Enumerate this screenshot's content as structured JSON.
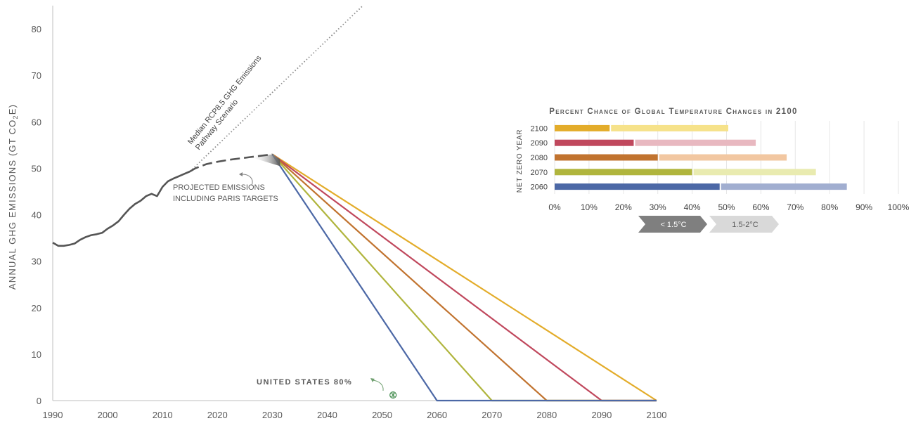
{
  "chart_data": [
    {
      "type": "line",
      "title": "",
      "xlabel": "",
      "ylabel_main": "ANNUAL GHG EMISSIONS (GT CO",
      "ylabel_sub": "2",
      "ylabel_end": "E)",
      "xlim": [
        1990,
        2100
      ],
      "ylim": [
        0,
        85
      ],
      "x_ticks": [
        "1990",
        "2000",
        "2010",
        "2020",
        "2030",
        "2040",
        "2050",
        "2060",
        "2070",
        "2080",
        "2090",
        "2100"
      ],
      "y_ticks": [
        "0",
        "10",
        "20",
        "30",
        "40",
        "50",
        "60",
        "70",
        "80"
      ],
      "historical": {
        "x": [
          1990,
          1991,
          1992,
          1993,
          1994,
          1995,
          1996,
          1997,
          1998,
          1999,
          2000,
          2001,
          2002,
          2003,
          2004,
          2005,
          2006,
          2007,
          2008,
          2009,
          2010,
          2011,
          2012,
          2013,
          2014,
          2015
        ],
        "y": [
          34,
          33.3,
          33.3,
          33.5,
          33.8,
          34.6,
          35.2,
          35.6,
          35.8,
          36.1,
          37,
          37.7,
          38.6,
          40,
          41.3,
          42.3,
          43,
          44,
          44.5,
          44,
          46,
          47.2,
          47.8,
          48.3,
          48.8,
          49.3
        ]
      },
      "projected": {
        "x": [
          2015,
          2016,
          2018,
          2020,
          2022,
          2024,
          2026,
          2028,
          2030
        ],
        "y": [
          49.3,
          50,
          50.9,
          51.4,
          51.8,
          52.1,
          52.4,
          52.7,
          53
        ]
      },
      "rcp85": {
        "x": [
          2015,
          2046.5
        ],
        "y": [
          49.3,
          85
        ]
      },
      "pathways": [
        {
          "name": "2060",
          "color": "#4c68a6",
          "x": [
            2030,
            2060,
            2100
          ],
          "y": [
            53,
            0,
            0
          ]
        },
        {
          "name": "2070",
          "color": "#b0b53d",
          "x": [
            2030,
            2070,
            2100
          ],
          "y": [
            53,
            0,
            0
          ]
        },
        {
          "name": "2080",
          "color": "#c1732f",
          "x": [
            2030,
            2080,
            2100
          ],
          "y": [
            53,
            0,
            0
          ]
        },
        {
          "name": "2090",
          "color": "#c0485d",
          "x": [
            2030,
            2090,
            2100
          ],
          "y": [
            53,
            0,
            0
          ]
        },
        {
          "name": "2100",
          "color": "#e3ac2a",
          "x": [
            2030,
            2100
          ],
          "y": [
            53,
            0
          ]
        }
      ],
      "annotations": {
        "rcp_line1": "Median RCP8.5 GHG Emissions",
        "rcp_line2": "Pathway Scenario",
        "projected_line1": "PROJECTED EMISSIONS",
        "projected_line2": "INCLUDING PARIS TARGETS",
        "us_label": "UNITED STATES 80%",
        "us_point": {
          "x": 2052,
          "y": 1.2
        }
      }
    },
    {
      "type": "bar",
      "title": "Percent Chance of Global Temperature Changes in 2100",
      "ylabel": "NET ZERO YEAR",
      "categories": [
        "2100",
        "2090",
        "2080",
        "2070",
        "2060"
      ],
      "series": [
        {
          "name": "< 1.5°C",
          "values": [
            16,
            23,
            30,
            40,
            48
          ]
        },
        {
          "name": "1.5-2°C",
          "values": [
            34.5,
            35.5,
            37.5,
            36,
            37
          ]
        }
      ],
      "colors_dark": [
        "#e3ac2a",
        "#c0485d",
        "#c1732f",
        "#b0b53d",
        "#4c68a6"
      ],
      "colors_light": [
        "#f6e28a",
        "#e8b8c0",
        "#f2c7a1",
        "#e9ebb0",
        "#a1aed0"
      ],
      "xlim": [
        0,
        100
      ],
      "x_ticks": [
        "0%",
        "10%",
        "20%",
        "30%",
        "40%",
        "50%",
        "60%",
        "70%",
        "80%",
        "90%",
        "100%"
      ],
      "legend_placement": "bottom"
    }
  ]
}
